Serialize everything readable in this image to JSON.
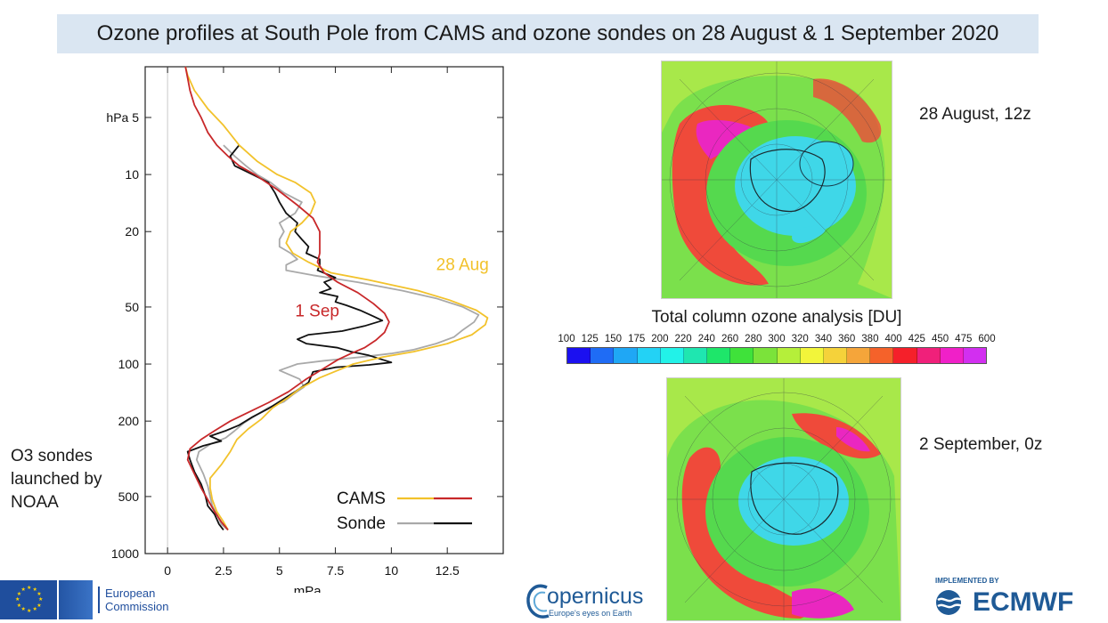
{
  "title": "Ozone profiles at South Pole from CAMS and ozone sondes on 28 August & 1 September 2020",
  "side_note": [
    "O3 sondes",
    "launched by",
    "NOAA"
  ],
  "maps": {
    "top_label": "28 August, 12z",
    "bottom_label": "2 September, 0z",
    "colorbar_title": "Total column ozone analysis [DU]",
    "colorbar_ticks": [
      "100",
      "125",
      "150",
      "175",
      "200",
      "220",
      "240",
      "260",
      "280",
      "300",
      "320",
      "340",
      "360",
      "380",
      "400",
      "425",
      "450",
      "475",
      "600"
    ],
    "colorbar_colors": [
      "#1b10f0",
      "#1f6cf5",
      "#1fa7f5",
      "#23d2f5",
      "#22f2e8",
      "#1fe6b0",
      "#1ee66a",
      "#3fe23a",
      "#7be33a",
      "#b5ef3a",
      "#f2f53a",
      "#f5d23a",
      "#f5a53a",
      "#f5622a",
      "#f5202a",
      "#f0207a",
      "#f020c8",
      "#d22ff0"
    ],
    "top_map_colors": {
      "ring": "#ef4a3a",
      "hot": "#ea27c0",
      "hole": "#3fd7e8",
      "band": "#55d94e",
      "mid": "#a8e84a"
    },
    "bottom_map_colors": {
      "ring": "#ef4a3a",
      "hot": "#ea27c0",
      "hole": "#3fd7e8",
      "band": "#55d94e",
      "mid": "#a8e84a"
    }
  },
  "footer": {
    "ec_text": [
      "European",
      "Commission"
    ],
    "copernicus_name": "opernicus",
    "copernicus_tagline": "Europe's eyes on Earth",
    "ecmwf_small": "IMPLEMENTED BY",
    "ecmwf_name": "ECMWF"
  },
  "chart_data": {
    "type": "line",
    "xlabel": "mPa",
    "ylabel": "hPa",
    "ylog": true,
    "yreversed": true,
    "xlim": [
      -1,
      15
    ],
    "ylim": [
      1000,
      2.7
    ],
    "xticks": [
      0,
      2.5,
      5,
      7.5,
      10,
      12.5
    ],
    "xtick_labels": [
      "0",
      "2.5",
      "5",
      "7.5",
      "10",
      "12.5"
    ],
    "yticks": [
      5,
      10,
      20,
      50,
      100,
      200,
      500,
      1000
    ],
    "ytick_labels": [
      "hPa 5",
      "10",
      "20",
      "50",
      "100",
      "200",
      "500",
      "1000"
    ],
    "annotations": [
      {
        "text": "28 Aug",
        "color": "#f2c22b",
        "x": 12,
        "y": 32
      },
      {
        "text": "1 Sep",
        "color": "#c8282a",
        "x": 5.7,
        "y": 56
      }
    ],
    "legend": {
      "placement": "bottom-right",
      "entries": [
        {
          "label": "CAMS",
          "colors": [
            "#f2c22b",
            "#c8282a"
          ]
        },
        {
          "label": "Sonde",
          "colors": [
            "#a9a9a9",
            "#111111"
          ]
        }
      ]
    },
    "series": [
      {
        "color": "#a9a9a9",
        "points": [
          [
            2.7,
            750
          ],
          [
            2.4,
            700
          ],
          [
            2.2,
            620
          ],
          [
            2.0,
            560
          ],
          [
            1.9,
            500
          ],
          [
            1.8,
            440
          ],
          [
            1.6,
            380
          ],
          [
            1.3,
            320
          ],
          [
            1.4,
            290
          ],
          [
            1.9,
            265
          ],
          [
            2.6,
            245
          ],
          [
            3.0,
            225
          ],
          [
            3.4,
            205
          ],
          [
            4.0,
            185
          ],
          [
            4.5,
            170
          ],
          [
            5.2,
            158
          ],
          [
            5.6,
            145
          ],
          [
            6.1,
            132
          ],
          [
            5.9,
            120
          ],
          [
            5.0,
            108
          ],
          [
            5.8,
            100
          ],
          [
            7.0,
            96
          ],
          [
            8.6,
            92
          ],
          [
            10.0,
            88
          ],
          [
            11.0,
            84
          ],
          [
            12.0,
            78
          ],
          [
            12.8,
            72
          ],
          [
            13.2,
            66
          ],
          [
            13.7,
            60
          ],
          [
            13.9,
            55
          ],
          [
            13.2,
            50
          ],
          [
            12.0,
            45
          ],
          [
            10.5,
            41
          ],
          [
            8.5,
            37
          ],
          [
            6.5,
            34
          ],
          [
            5.3,
            32
          ],
          [
            5.3,
            30
          ],
          [
            5.8,
            28
          ],
          [
            5.5,
            26
          ],
          [
            5.0,
            24
          ],
          [
            5.0,
            22
          ],
          [
            5.2,
            20
          ],
          [
            5.0,
            18
          ],
          [
            5.7,
            16
          ],
          [
            6.0,
            14
          ],
          [
            5.2,
            12.5
          ],
          [
            4.6,
            11
          ],
          [
            4.0,
            10
          ],
          [
            3.5,
            9
          ],
          [
            3.0,
            8
          ],
          [
            2.5,
            7
          ]
        ]
      },
      {
        "color": "#111111",
        "points": [
          [
            2.5,
            750
          ],
          [
            2.3,
            700
          ],
          [
            2.1,
            620
          ],
          [
            1.8,
            560
          ],
          [
            1.7,
            500
          ],
          [
            1.5,
            430
          ],
          [
            1.2,
            370
          ],
          [
            1.0,
            320
          ],
          [
            0.9,
            290
          ],
          [
            1.6,
            270
          ],
          [
            2.4,
            255
          ],
          [
            1.9,
            240
          ],
          [
            2.6,
            225
          ],
          [
            3.2,
            210
          ],
          [
            3.8,
            190
          ],
          [
            4.5,
            172
          ],
          [
            5.1,
            155
          ],
          [
            5.7,
            140
          ],
          [
            6.3,
            125
          ],
          [
            6.5,
            110
          ],
          [
            7.5,
            104
          ],
          [
            9.0,
            101
          ],
          [
            10.0,
            98
          ],
          [
            9.5,
            94
          ],
          [
            9.0,
            90
          ],
          [
            8.2,
            86
          ],
          [
            7.6,
            82
          ],
          [
            6.2,
            78
          ],
          [
            5.8,
            74
          ],
          [
            6.3,
            70
          ],
          [
            7.8,
            67
          ],
          [
            8.8,
            63
          ],
          [
            9.6,
            59
          ],
          [
            9.2,
            56
          ],
          [
            8.6,
            52
          ],
          [
            8.0,
            49
          ],
          [
            7.5,
            47
          ],
          [
            7.6,
            44
          ],
          [
            6.8,
            42
          ],
          [
            7.3,
            40
          ],
          [
            7.0,
            37
          ],
          [
            7.5,
            35
          ],
          [
            6.7,
            32
          ],
          [
            6.8,
            30
          ],
          [
            6.8,
            28
          ],
          [
            6.2,
            26
          ],
          [
            6.3,
            24
          ],
          [
            6.0,
            22
          ],
          [
            5.7,
            20
          ],
          [
            5.8,
            18
          ],
          [
            5.3,
            16
          ],
          [
            5.0,
            14
          ],
          [
            4.8,
            12.5
          ],
          [
            4.5,
            11
          ],
          [
            3.8,
            10
          ],
          [
            3.0,
            9
          ],
          [
            2.8,
            8
          ],
          [
            3.2,
            7
          ]
        ]
      },
      {
        "color": "#f2c22b",
        "points": [
          [
            2.7,
            750
          ],
          [
            2.5,
            680
          ],
          [
            2.2,
            600
          ],
          [
            2.0,
            520
          ],
          [
            1.9,
            450
          ],
          [
            1.9,
            400
          ],
          [
            2.4,
            340
          ],
          [
            2.8,
            290
          ],
          [
            3.1,
            250
          ],
          [
            3.6,
            220
          ],
          [
            4.2,
            195
          ],
          [
            4.7,
            170
          ],
          [
            5.4,
            150
          ],
          [
            5.9,
            135
          ],
          [
            6.8,
            118
          ],
          [
            7.6,
            108
          ],
          [
            8.3,
            100
          ],
          [
            9.6,
            92
          ],
          [
            11.0,
            86
          ],
          [
            12.5,
            78
          ],
          [
            13.6,
            70
          ],
          [
            14.2,
            62
          ],
          [
            14.3,
            57
          ],
          [
            13.8,
            52
          ],
          [
            12.6,
            46
          ],
          [
            11.2,
            41
          ],
          [
            9.0,
            36
          ],
          [
            7.3,
            33
          ],
          [
            6.3,
            29
          ],
          [
            5.6,
            26
          ],
          [
            5.3,
            23
          ],
          [
            5.5,
            20
          ],
          [
            6.0,
            18
          ],
          [
            6.4,
            16
          ],
          [
            6.6,
            14
          ],
          [
            6.4,
            12.5
          ],
          [
            5.7,
            11
          ],
          [
            4.9,
            10
          ],
          [
            4.0,
            8.5
          ],
          [
            3.2,
            7
          ],
          [
            2.5,
            5.5
          ],
          [
            1.8,
            4.5
          ],
          [
            1.2,
            3.6
          ],
          [
            0.9,
            3.0
          ],
          [
            0.8,
            2.7
          ]
        ]
      },
      {
        "color": "#c8282a",
        "points": [
          [
            2.7,
            750
          ],
          [
            2.4,
            680
          ],
          [
            2.1,
            600
          ],
          [
            1.8,
            520
          ],
          [
            1.5,
            450
          ],
          [
            1.2,
            380
          ],
          [
            0.9,
            320
          ],
          [
            1.0,
            280
          ],
          [
            1.5,
            250
          ],
          [
            2.1,
            225
          ],
          [
            2.8,
            200
          ],
          [
            3.6,
            180
          ],
          [
            4.5,
            160
          ],
          [
            5.4,
            140
          ],
          [
            6.2,
            120
          ],
          [
            7.0,
            105
          ],
          [
            7.6,
            95
          ],
          [
            8.2,
            88
          ],
          [
            8.8,
            82
          ],
          [
            9.3,
            75
          ],
          [
            9.7,
            68
          ],
          [
            9.9,
            60
          ],
          [
            9.7,
            54
          ],
          [
            9.2,
            48
          ],
          [
            8.5,
            42
          ],
          [
            7.6,
            37
          ],
          [
            7.0,
            33
          ],
          [
            6.7,
            29
          ],
          [
            6.8,
            26
          ],
          [
            6.8,
            23
          ],
          [
            6.8,
            20
          ],
          [
            6.5,
            17
          ],
          [
            5.8,
            14.5
          ],
          [
            4.9,
            12
          ],
          [
            3.9,
            10
          ],
          [
            3.2,
            9
          ],
          [
            2.7,
            8
          ],
          [
            2.2,
            7
          ],
          [
            1.8,
            6
          ],
          [
            1.5,
            5
          ],
          [
            1.2,
            4.3
          ],
          [
            1.0,
            3.6
          ],
          [
            0.9,
            3.1
          ],
          [
            0.8,
            2.7
          ]
        ]
      }
    ]
  }
}
